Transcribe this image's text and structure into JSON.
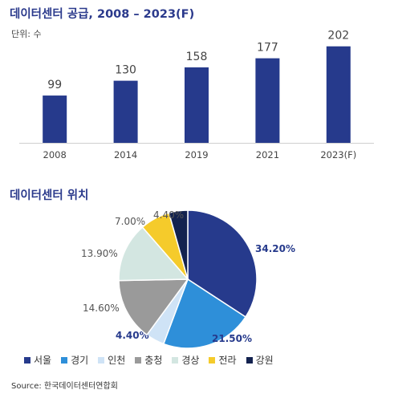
{
  "bar_section": {
    "title": "데이터센터 공급, 2008 – 2023(F)",
    "unit": "단위: 수"
  },
  "pie_section": {
    "title": "데이터센터 위치"
  },
  "source": "Source: 한국데이터센터연합회",
  "colors": {
    "navy": "#263a8c",
    "title": "#2b3a8c"
  },
  "chart_data": [
    {
      "type": "bar",
      "title": "데이터센터 공급, 2008 – 2023(F)",
      "ylabel": "단위: 수",
      "categories": [
        "2008",
        "2014",
        "2019",
        "2021",
        "2023(F)"
      ],
      "values": [
        99,
        130,
        158,
        177,
        202
      ],
      "value_labels": [
        "99",
        "130",
        "158",
        "177",
        "202"
      ],
      "ylim": [
        0,
        215
      ],
      "color": "#263a8c"
    },
    {
      "type": "pie",
      "title": "데이터센터 위치",
      "legend_position": "bottom",
      "slices": [
        {
          "name": "서울",
          "value": 34.2,
          "label": "34.20%",
          "color": "#263a8c"
        },
        {
          "name": "경기",
          "value": 21.5,
          "label": "21.50%",
          "color": "#2e8fd9"
        },
        {
          "name": "인천",
          "value": 4.4,
          "label": "4.40%",
          "color": "#cfe3f6"
        },
        {
          "name": "충청",
          "value": 14.6,
          "label": "14.60%",
          "color": "#9a9a9a"
        },
        {
          "name": "경상",
          "value": 13.9,
          "label": "13.90%",
          "color": "#d3e6e1"
        },
        {
          "name": "전라",
          "value": 7.0,
          "label": "7.00%",
          "color": "#f5cb2b"
        },
        {
          "name": "강원",
          "value": 4.4,
          "label": "4.40%",
          "color": "#13224f"
        }
      ]
    }
  ]
}
